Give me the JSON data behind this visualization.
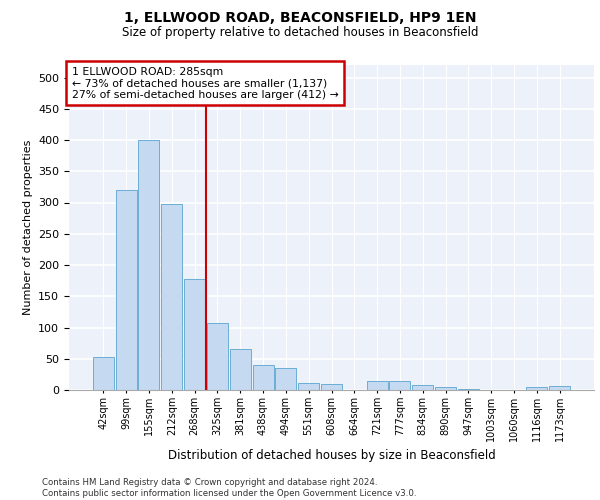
{
  "title": "1, ELLWOOD ROAD, BEACONSFIELD, HP9 1EN",
  "subtitle": "Size of property relative to detached houses in Beaconsfield",
  "xlabel": "Distribution of detached houses by size in Beaconsfield",
  "ylabel": "Number of detached properties",
  "categories": [
    "42sqm",
    "99sqm",
    "155sqm",
    "212sqm",
    "268sqm",
    "325sqm",
    "381sqm",
    "438sqm",
    "494sqm",
    "551sqm",
    "608sqm",
    "664sqm",
    "721sqm",
    "777sqm",
    "834sqm",
    "890sqm",
    "947sqm",
    "1003sqm",
    "1060sqm",
    "1116sqm",
    "1173sqm"
  ],
  "values": [
    53,
    320,
    400,
    297,
    178,
    108,
    65,
    40,
    35,
    11,
    10,
    0,
    15,
    15,
    8,
    5,
    2,
    0,
    0,
    5,
    6
  ],
  "bar_color": "#c5d9f0",
  "bar_edge_color": "#6baed6",
  "vline_x": 4.5,
  "vline_color": "#cc0000",
  "annotation_text": "1 ELLWOOD ROAD: 285sqm\n← 73% of detached houses are smaller (1,137)\n27% of semi-detached houses are larger (412) →",
  "annotation_box_color": "#ffffff",
  "annotation_box_edge_color": "#cc0000",
  "ylim": [
    0,
    520
  ],
  "yticks": [
    0,
    50,
    100,
    150,
    200,
    250,
    300,
    350,
    400,
    450,
    500
  ],
  "footer": "Contains HM Land Registry data © Crown copyright and database right 2024.\nContains public sector information licensed under the Open Government Licence v3.0.",
  "plot_bg_color": "#edf2fa"
}
